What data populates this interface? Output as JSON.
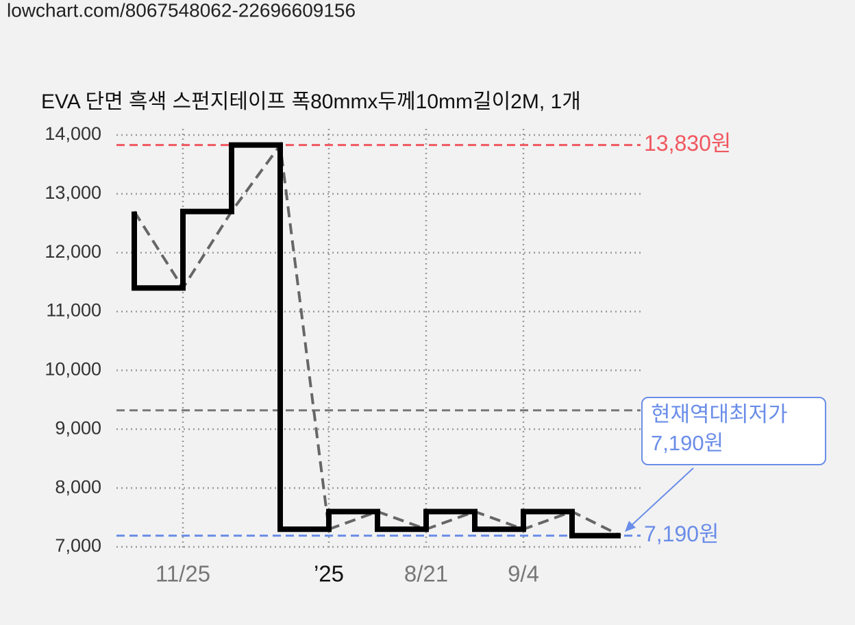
{
  "source_url": "lowchart.com/8067548062-22696609156",
  "chart_data": {
    "type": "step",
    "title": "EVA 단면 흑색 스펀지테이프 폭80mmx두께10mm길이2M, 1개",
    "categories": [
      null,
      "11/25",
      null,
      null,
      "’25",
      null,
      "8/21",
      null,
      "9/4",
      null,
      null
    ],
    "series": [
      {
        "color": "#000000",
        "values": [
          12700,
          11400,
          12700,
          13830,
          7300,
          7600,
          7300,
          7600,
          7300,
          7600,
          7190
        ]
      }
    ],
    "trend_color": "#666666",
    "ylim": [
      7000,
      14000
    ],
    "yticks": [
      {
        "value": 7000,
        "label": "7,000"
      },
      {
        "value": 8000,
        "label": "8,000"
      },
      {
        "value": 9000,
        "label": "9,000"
      },
      {
        "value": 10000,
        "label": "10,000"
      },
      {
        "value": 11000,
        "label": "11,000"
      },
      {
        "value": 12000,
        "label": "12,000"
      },
      {
        "value": 13000,
        "label": "13,000"
      },
      {
        "value": 14000,
        "label": "14,000"
      }
    ],
    "grid": true,
    "reference_lines": [
      {
        "value": 13830,
        "label": "13,830원",
        "color": "#f0575f"
      },
      {
        "value": 7190,
        "label": "7,190원",
        "color": "#6a8de8"
      },
      {
        "value": 9320,
        "color": "#777777"
      }
    ],
    "annotation": {
      "lines": [
        "현재역대최저가",
        "7,190원"
      ],
      "color": "#6a8de8"
    }
  }
}
